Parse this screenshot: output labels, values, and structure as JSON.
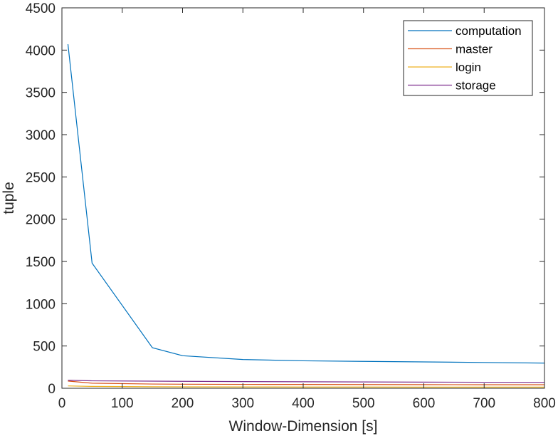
{
  "chart_data": {
    "type": "line",
    "title": "",
    "xlabel": "Window-Dimension [s]",
    "ylabel": "tuple",
    "xlim": [
      0,
      800
    ],
    "ylim": [
      0,
      4500
    ],
    "xticks": [
      0,
      100,
      200,
      300,
      400,
      500,
      600,
      700,
      800
    ],
    "yticks": [
      0,
      500,
      1000,
      1500,
      2000,
      2500,
      3000,
      3500,
      4000,
      4500
    ],
    "grid": false,
    "legend_position": "top-right",
    "series": [
      {
        "name": "computation",
        "color": "#0072BD",
        "x": [
          10,
          50,
          150,
          200,
          300,
          400,
          500,
          600,
          700,
          800
        ],
        "y": [
          4070,
          1480,
          480,
          385,
          340,
          325,
          318,
          312,
          305,
          298
        ]
      },
      {
        "name": "master",
        "color": "#D95319",
        "x": [
          10,
          50,
          150,
          200,
          300,
          400,
          500,
          600,
          700,
          800
        ],
        "y": [
          85,
          60,
          50,
          48,
          46,
          45,
          44,
          43,
          42,
          42
        ]
      },
      {
        "name": "login",
        "color": "#EDB120",
        "x": [
          10,
          50,
          150,
          200,
          300,
          400,
          500,
          600,
          700,
          800
        ],
        "y": [
          28,
          22,
          18,
          17,
          16,
          15,
          15,
          14,
          14,
          14
        ]
      },
      {
        "name": "storage",
        "color": "#7E2F8E",
        "x": [
          10,
          50,
          150,
          200,
          300,
          400,
          500,
          600,
          700,
          800
        ],
        "y": [
          95,
          88,
          84,
          82,
          79,
          77,
          75,
          73,
          71,
          70
        ]
      }
    ]
  }
}
